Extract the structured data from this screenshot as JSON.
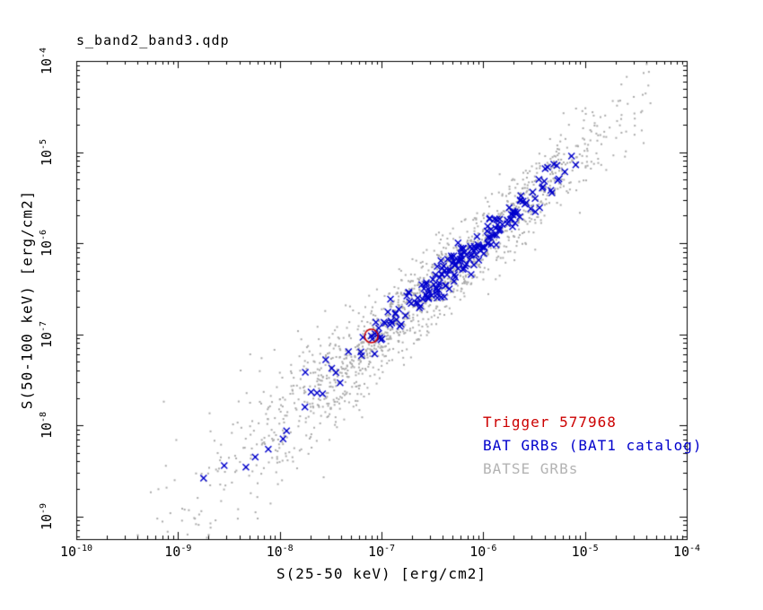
{
  "window": {
    "background": "#ffffff"
  },
  "title": "s_band2_band3.qdp",
  "legend": {
    "position": "bottom-right",
    "items": [
      {
        "label": "Trigger 577968",
        "color": "#cc0000"
      },
      {
        "label": "BAT GRBs (BAT1 catalog)",
        "color": "#0000cc"
      },
      {
        "label": "BATSE GRBs",
        "color": "#b3b3b3"
      }
    ]
  },
  "chart_data": {
    "type": "scatter",
    "title": "s_band2_band3.qdp",
    "xlabel": "S(25-50 keV) [erg/cm2]",
    "ylabel": "S(50-100 keV) [erg/cm2]",
    "x_scale": "log",
    "y_scale": "log",
    "x_log_range": [
      -10,
      -4
    ],
    "y_log_range": [
      -9.25,
      -4
    ],
    "grid": false,
    "axis_color": "#000000",
    "tick_base": "10",
    "x_tick_exponents": [
      -10,
      -9,
      -8,
      -7,
      -6,
      -5,
      -4
    ],
    "y_tick_exponents": [
      -9,
      -8,
      -7,
      -6,
      -5,
      -4
    ],
    "seed": 577968,
    "series": [
      {
        "name": "BATSE GRBs",
        "marker": "dot",
        "marker_color": "#aaaaaa",
        "count": 1600,
        "log10_distribution": {
          "x_mean": -6.5,
          "x_sd": 0.98,
          "x_min": -9.45,
          "x_max": -4.35,
          "tail_fraction": 0.05,
          "tail_range": [
            -9.45,
            -7.4
          ],
          "y_offset": 0.0,
          "y_sd": 0.22,
          "y_widen_per_decade": 0.1,
          "y_widen_below": -6.8
        }
      },
      {
        "name": "BAT GRBs (BAT1 catalog)",
        "marker": "x",
        "marker_color": "#0000cc",
        "count": 210,
        "log10_distribution": {
          "x_mean": -6.22,
          "x_sd": 0.58,
          "x_min": -8.75,
          "x_max": -5.05,
          "tail_fraction": 0.05,
          "tail_range": [
            -8.75,
            -7.2
          ],
          "y_offset": 0.02,
          "y_sd": 0.1,
          "y_widen_per_decade": 0.08,
          "y_widen_below": -7.4
        }
      },
      {
        "name": "Trigger 577968",
        "marker": "open-circle",
        "marker_color": "#cc0000",
        "underlay_marker": {
          "marker": "x",
          "color": "#0000cc"
        },
        "points_log10": [
          [
            -7.1,
            -7.02
          ]
        ],
        "points_value": [
          [
            8e-08,
            9.5e-08
          ]
        ]
      }
    ]
  }
}
